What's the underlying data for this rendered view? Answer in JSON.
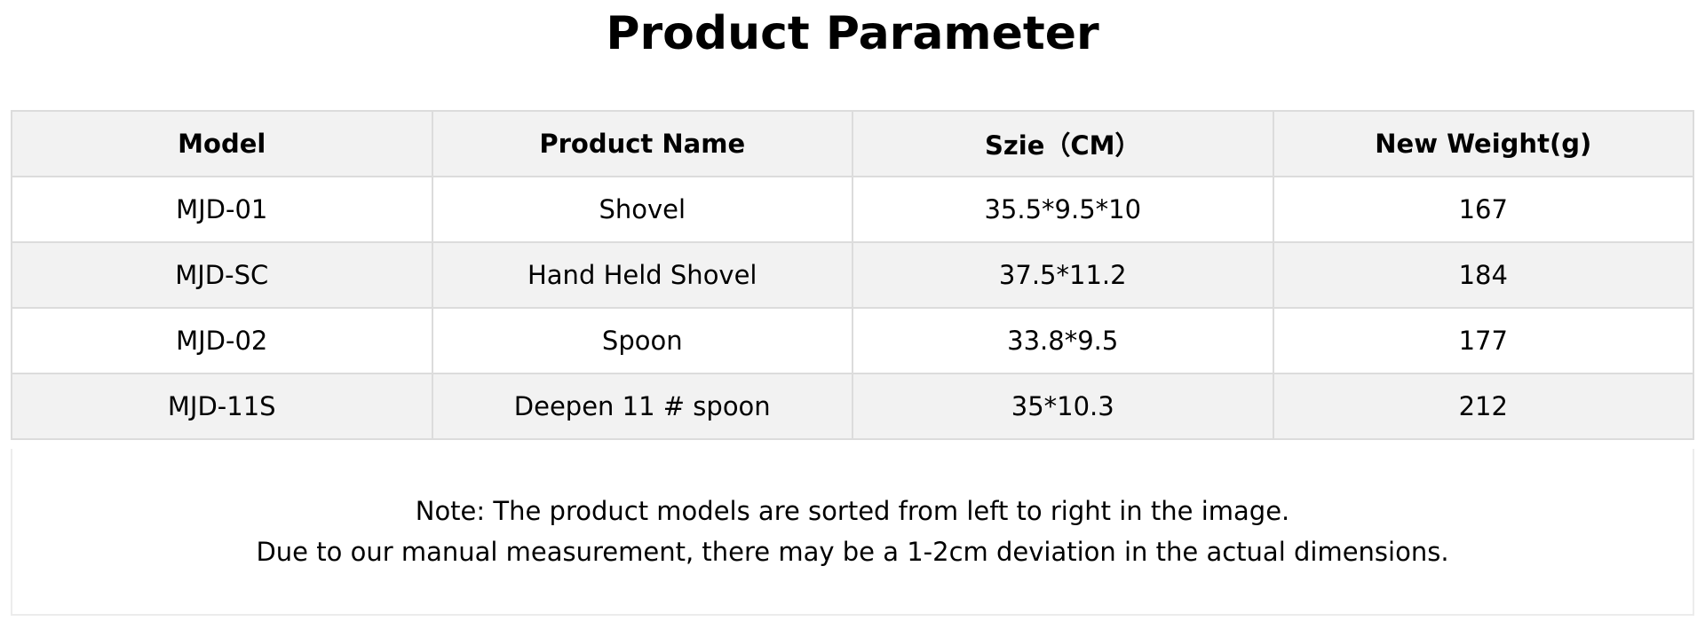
{
  "title": "Product Parameter",
  "table": {
    "headers": [
      "Model",
      "Product Name",
      "Szie（CM）",
      "New Weight(g)"
    ],
    "rows": [
      [
        "MJD-01",
        "Shovel",
        "35.5*9.5*10",
        "167"
      ],
      [
        "MJD-SC",
        "Hand Held Shovel",
        "37.5*11.2",
        "184"
      ],
      [
        "MJD-02",
        "Spoon",
        "33.8*9.5",
        "177"
      ],
      [
        "MJD-11S",
        "Deepen 11 # spoon",
        "35*10.3",
        "212"
      ]
    ]
  },
  "note": {
    "line1": "Note: The product models are sorted from left to right in the image.",
    "line2": "Due to our manual measurement, there may be a 1-2cm deviation in the actual dimensions."
  },
  "colors": {
    "header_bg": "#f2f2f2",
    "border": "#dcdcdc"
  }
}
